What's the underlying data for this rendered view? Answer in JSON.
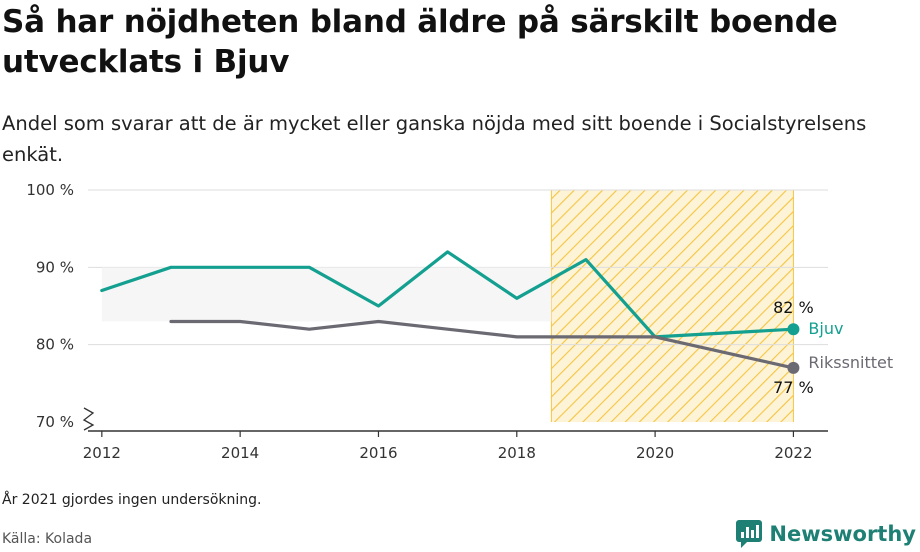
{
  "header": {
    "title": "Så har nöjdheten bland äldre på särskilt boende utvecklats i Bjuv",
    "subtitle": "Andel som svarar att de är mycket eller ganska nöjda med sitt boende i Socialstyrelsens enkät."
  },
  "footer": {
    "note": "År 2021 gjordes ingen undersökning.",
    "source": "Källa: Kolada",
    "brand": "Newsworthy"
  },
  "colors": {
    "bjuv": "#14a090",
    "riks": "#6b6972",
    "highlight": "#f5c542",
    "grid": "#dddddd"
  },
  "chart_data": {
    "type": "line",
    "xlim": [
      2011.8,
      2022.5
    ],
    "ylim": [
      70,
      100
    ],
    "x_ticks": [
      2012,
      2014,
      2016,
      2018,
      2020,
      2022
    ],
    "x_tick_labels": [
      "2012",
      "2014",
      "2016",
      "2018",
      "2020",
      "2022"
    ],
    "y_ticks": [
      70,
      80,
      90,
      100
    ],
    "y_tick_labels": [
      "70 %",
      "80 %",
      "90 %",
      "100 %"
    ],
    "y_axis_broken": true,
    "grid": true,
    "highlight_range": [
      2018.5,
      2022
    ],
    "series": [
      {
        "name": "Bjuv",
        "color": "#14a090",
        "x": [
          2012,
          2013,
          2014,
          2015,
          2016,
          2017,
          2018,
          2019,
          2020,
          2022
        ],
        "y": [
          87,
          90,
          90,
          90,
          85,
          92,
          86,
          91,
          81,
          82
        ],
        "end_value_label": "82 %"
      },
      {
        "name": "Rikssnittet",
        "color": "#6b6972",
        "x": [
          2013,
          2014,
          2015,
          2016,
          2017,
          2018,
          2019,
          2020,
          2022
        ],
        "y": [
          83,
          83,
          82,
          83,
          82,
          81,
          81,
          81,
          77
        ],
        "end_value_label": "77 %"
      }
    ]
  }
}
